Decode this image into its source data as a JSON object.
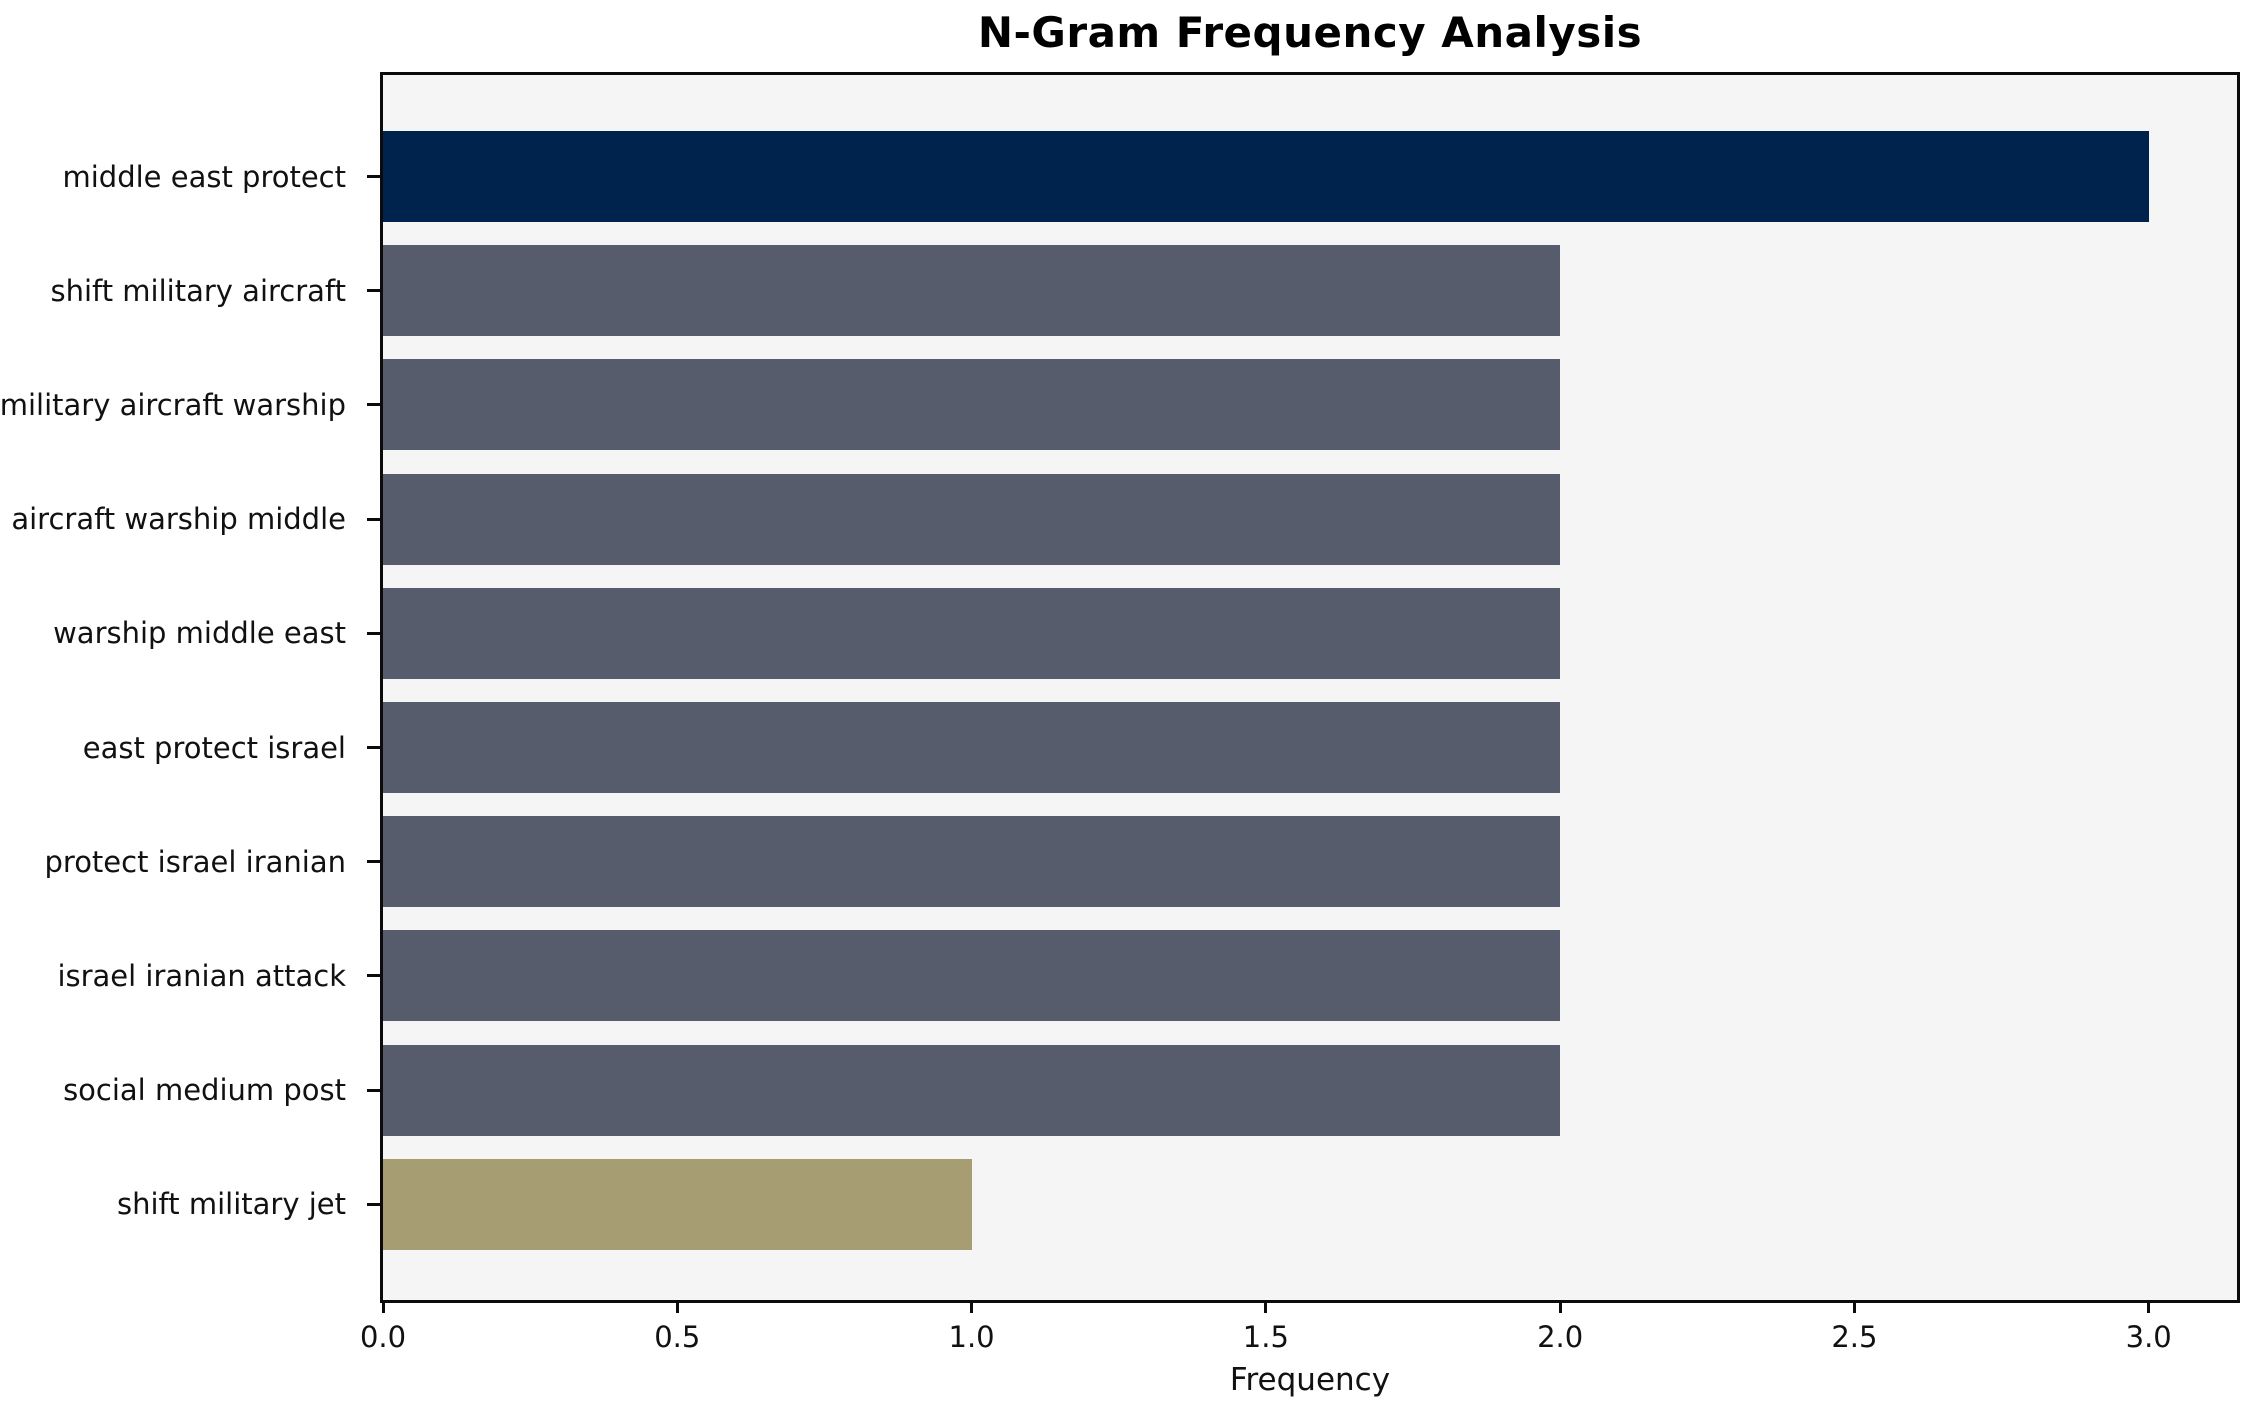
{
  "chart_data": {
    "type": "bar",
    "orientation": "horizontal",
    "title": "N-Gram Frequency Analysis",
    "xlabel": "Frequency",
    "ylabel": "",
    "categories": [
      "middle east protect",
      "shift military aircraft",
      "military aircraft warship",
      "aircraft warship middle",
      "warship middle east",
      "east protect israel",
      "protect israel iranian",
      "israel iranian attack",
      "social medium post",
      "shift military jet"
    ],
    "values": [
      3,
      2,
      2,
      2,
      2,
      2,
      2,
      2,
      2,
      1
    ],
    "bar_colors": [
      "#00234d",
      "#565c6b",
      "#565c6b",
      "#565c6b",
      "#565c6b",
      "#565c6b",
      "#565c6b",
      "#565c6b",
      "#565c6b",
      "#a69d72"
    ],
    "xlim": [
      0,
      3.15
    ],
    "xtick_labels": [
      "0.0",
      "0.5",
      "1.0",
      "1.5",
      "2.0",
      "2.5",
      "3.0"
    ],
    "xtick_values": [
      0.0,
      0.5,
      1.0,
      1.5,
      2.0,
      2.5,
      3.0
    ],
    "grid": false,
    "legend": false,
    "colors": {
      "plot_background": "#f5f5f6",
      "figure_background": "#ffffff",
      "spine": "#0b0b0b",
      "max_bar": "#00234d",
      "mid_bar": "#565c6b",
      "min_bar": "#a69d72"
    }
  }
}
